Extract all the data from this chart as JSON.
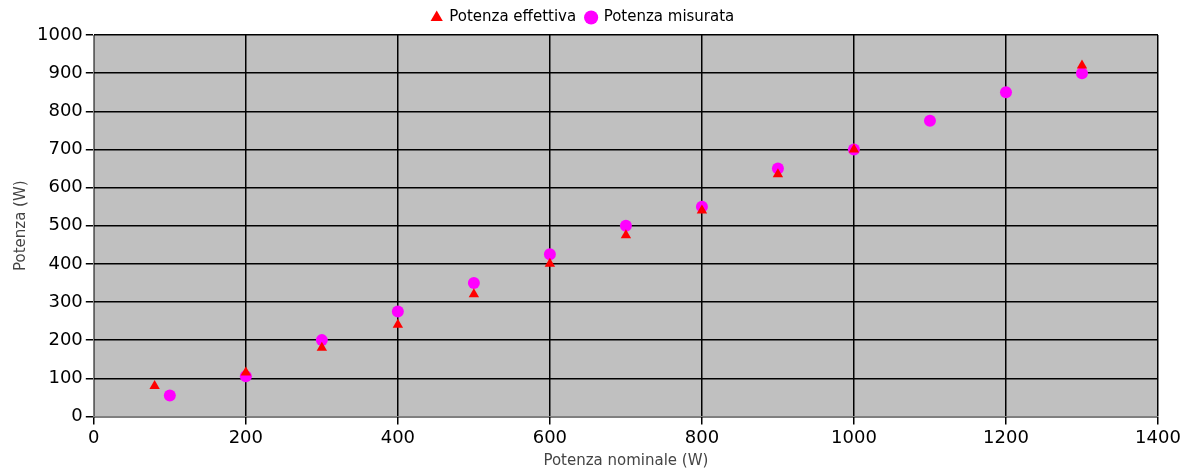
{
  "chart_data": {
    "type": "scatter",
    "xlabel": "Potenza nominale (W)",
    "ylabel": "Potenza (W)",
    "xlim": [
      0,
      1400
    ],
    "xticks": [
      0,
      200,
      400,
      600,
      800,
      1000,
      1200,
      1400
    ],
    "ylim": [
      0,
      1000
    ],
    "yticks": [
      0,
      100,
      200,
      300,
      400,
      500,
      600,
      700,
      800,
      900,
      1000
    ],
    "grid": true,
    "legend": "top",
    "series": [
      {
        "name": "Potenza effettiva",
        "color": "#ff0000",
        "marker": "triangle",
        "x": [
          80,
          200,
          300,
          400,
          500,
          600,
          700,
          800,
          900,
          1000,
          1300
        ],
        "values": [
          80,
          115,
          180,
          240,
          320,
          400,
          475,
          540,
          635,
          700,
          920
        ]
      },
      {
        "name": "Potenza misurata",
        "color": "#ff00ff",
        "marker": "circle",
        "x": [
          100,
          200,
          300,
          400,
          500,
          600,
          700,
          800,
          900,
          1000,
          1100,
          1200,
          1300
        ],
        "values": [
          55,
          105,
          200,
          275,
          350,
          425,
          500,
          550,
          650,
          700,
          775,
          850,
          900
        ]
      }
    ]
  }
}
